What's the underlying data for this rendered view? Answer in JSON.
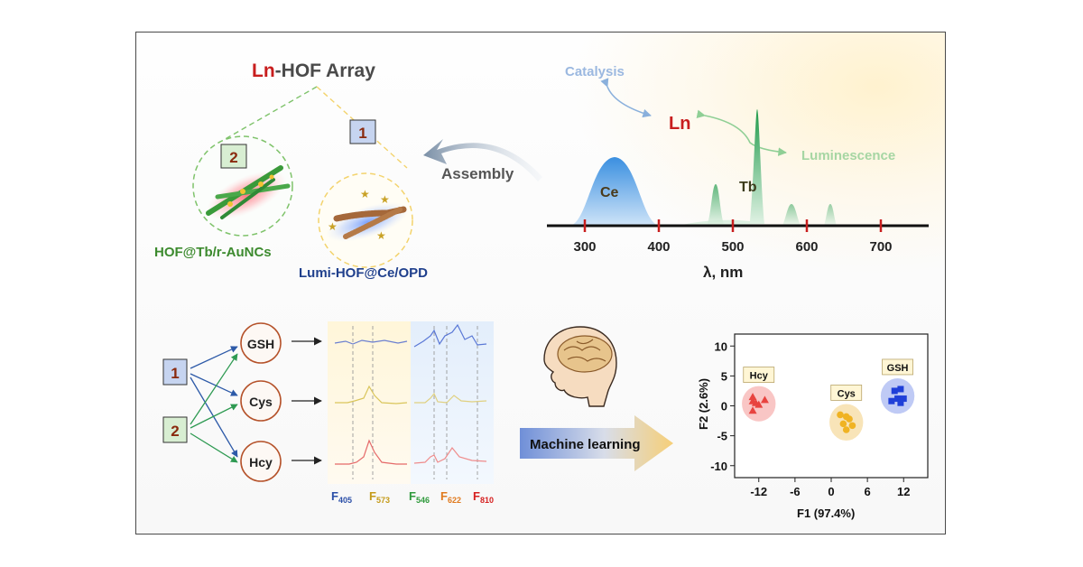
{
  "title": {
    "prefix": "Ln",
    "rest": "-HOF Array"
  },
  "probes": {
    "box1": "1",
    "box2": "2",
    "probe1_name": "Lumi-HOF@Ce/OPD",
    "probe2_name": "HOF@Tb/r-AuNCs"
  },
  "assembly_label": "Assembly",
  "ln_center": {
    "label": "Ln",
    "catalysis": "Catalysis",
    "luminescence": "Luminescence"
  },
  "spectrum": {
    "ce_label": "Ce",
    "tb_label": "Tb",
    "ticks": [
      "300",
      "400",
      "500",
      "600",
      "700"
    ],
    "xlabel": "λ, nm"
  },
  "analytes": [
    "GSH",
    "Cys",
    "Hcy"
  ],
  "arrays": {
    "box1": "1",
    "box2": "2"
  },
  "features": [
    {
      "label": "F",
      "sub": "405",
      "color": "#2b4fa8"
    },
    {
      "label": "F",
      "sub": "573",
      "color": "#c49a18"
    },
    {
      "label": "F",
      "sub": "546",
      "color": "#2f9a3c"
    },
    {
      "label": "F",
      "sub": "622",
      "color": "#e07a1e"
    },
    {
      "label": "F",
      "sub": "810",
      "color": "#d62020"
    }
  ],
  "machine_learning": "Machine learning",
  "chart_data": {
    "type": "scatter",
    "xlabel": "F1 (97.4%)",
    "ylabel": "F2 (2.6%)",
    "xticks": [
      -12,
      -6,
      0,
      6,
      12
    ],
    "yticks": [
      10,
      5,
      0,
      -5,
      -10
    ],
    "xlim": [
      -16,
      16
    ],
    "ylim": [
      -12,
      12
    ],
    "series": [
      {
        "name": "Hcy",
        "color": "#e8433f",
        "marker": "triangle",
        "points": [
          [
            -13,
            1.5
          ],
          [
            -13,
            0.8
          ],
          [
            -12.5,
            0.5
          ],
          [
            -12,
            0.2
          ],
          [
            -11,
            1
          ],
          [
            -13,
            -0.8
          ]
        ]
      },
      {
        "name": "Cys",
        "color": "#f0b323",
        "marker": "circle",
        "points": [
          [
            1.5,
            -1.5
          ],
          [
            2.5,
            -1.8
          ],
          [
            3,
            -2.2
          ],
          [
            2,
            -3
          ],
          [
            3.5,
            -3.3
          ],
          [
            2.5,
            -4
          ]
        ]
      },
      {
        "name": "GSH",
        "color": "#1f3fd8",
        "marker": "square",
        "points": [
          [
            10.5,
            2.5
          ],
          [
            11.5,
            2.8
          ],
          [
            11,
            1.2
          ],
          [
            10,
            0.8
          ],
          [
            11.5,
            0.5
          ],
          [
            12,
            1.2
          ]
        ]
      }
    ]
  }
}
